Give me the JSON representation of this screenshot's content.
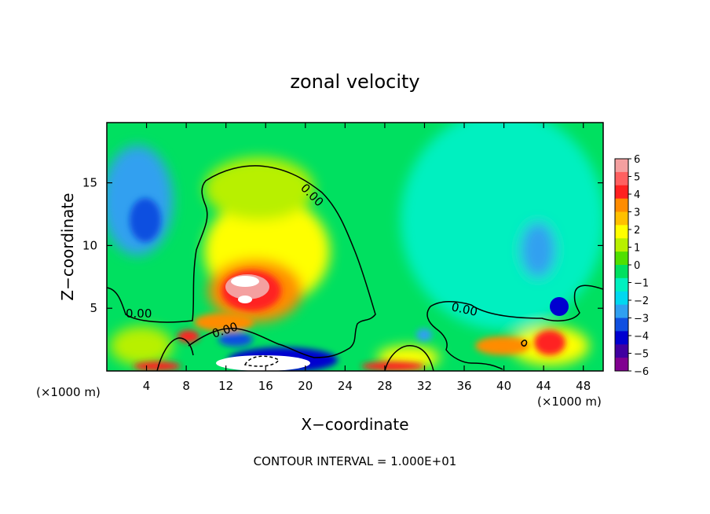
{
  "chart_data": {
    "type": "heatmap",
    "title": "zonal velocity",
    "xlabel": "X−coordinate",
    "ylabel": "Z−coordinate",
    "x_unit_label": "(×1000 m)",
    "x_unit_label_right": "(×1000 m)",
    "x_ticks": [
      4,
      8,
      12,
      16,
      20,
      24,
      28,
      32,
      36,
      40,
      44,
      48
    ],
    "y_ticks": [
      5,
      10,
      15
    ],
    "xlim": [
      0,
      50
    ],
    "ylim": [
      0,
      19.8
    ],
    "contour_label": "0.00",
    "footer": "CONTOUR INTERVAL = 1.000E+01",
    "colorbar": {
      "ticks": [
        "6",
        "5",
        "4",
        "3",
        "2",
        "1",
        "0",
        "−1",
        "−2",
        "−3",
        "−4",
        "−5",
        "−6"
      ],
      "colors": [
        "#f4a0a0",
        "#ff6060",
        "#ff2020",
        "#ff8c00",
        "#ffc000",
        "#ffff00",
        "#b8f000",
        "#50e000",
        "#00e060",
        "#00f0c0",
        "#00d8f0",
        "#30a0f0",
        "#1050e0",
        "#0000d0",
        "#4000a0",
        "#800090"
      ]
    },
    "features": [
      {
        "x": 4,
        "z": 12,
        "value": -3
      },
      {
        "x": 13.5,
        "z": 7,
        "value": 6
      },
      {
        "x": 14.5,
        "z": 1,
        "value": -5
      },
      {
        "x": 45,
        "z": 2.5,
        "value": 4
      },
      {
        "x": 45.5,
        "z": 5,
        "value": -5
      },
      {
        "x": 43.5,
        "z": 10,
        "value": -3
      }
    ]
  }
}
